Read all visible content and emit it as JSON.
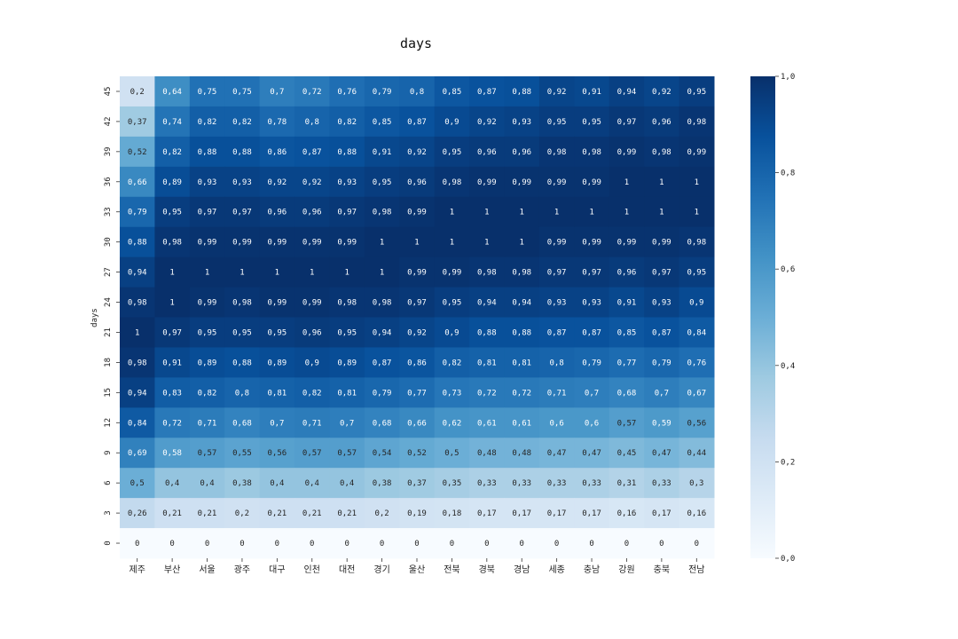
{
  "chart_data": {
    "type": "heatmap",
    "title": "days",
    "xlabel": "",
    "ylabel": "days",
    "x_categories": [
      "제주",
      "부산",
      "서울",
      "광주",
      "대구",
      "인천",
      "대전",
      "경기",
      "울산",
      "전북",
      "경북",
      "경남",
      "세종",
      "충남",
      "강원",
      "충북",
      "전남"
    ],
    "y_categories": [
      "45",
      "42",
      "39",
      "36",
      "33",
      "30",
      "27",
      "24",
      "21",
      "18",
      "15",
      "12",
      "9",
      "6",
      "3",
      "0"
    ],
    "values": [
      [
        0.2,
        0.64,
        0.75,
        0.75,
        0.7,
        0.72,
        0.76,
        0.79,
        0.8,
        0.85,
        0.87,
        0.88,
        0.92,
        0.91,
        0.94,
        0.92,
        0.95
      ],
      [
        0.37,
        0.74,
        0.82,
        0.82,
        0.78,
        0.8,
        0.82,
        0.85,
        0.87,
        0.9,
        0.92,
        0.93,
        0.95,
        0.95,
        0.97,
        0.96,
        0.98
      ],
      [
        0.52,
        0.82,
        0.88,
        0.88,
        0.86,
        0.87,
        0.88,
        0.91,
        0.92,
        0.95,
        0.96,
        0.96,
        0.98,
        0.98,
        0.99,
        0.98,
        0.99
      ],
      [
        0.66,
        0.89,
        0.93,
        0.93,
        0.92,
        0.92,
        0.93,
        0.95,
        0.96,
        0.98,
        0.99,
        0.99,
        0.99,
        0.99,
        1,
        1,
        1
      ],
      [
        0.79,
        0.95,
        0.97,
        0.97,
        0.96,
        0.96,
        0.97,
        0.98,
        0.99,
        1,
        1,
        1,
        1,
        1,
        1,
        1,
        1
      ],
      [
        0.88,
        0.98,
        0.99,
        0.99,
        0.99,
        0.99,
        0.99,
        1,
        1,
        1,
        1,
        1,
        0.99,
        0.99,
        0.99,
        0.99,
        0.98
      ],
      [
        0.94,
        1,
        1,
        1,
        1,
        1,
        1,
        1,
        0.99,
        0.99,
        0.98,
        0.98,
        0.97,
        0.97,
        0.96,
        0.97,
        0.95
      ],
      [
        0.98,
        1,
        0.99,
        0.98,
        0.99,
        0.99,
        0.98,
        0.98,
        0.97,
        0.95,
        0.94,
        0.94,
        0.93,
        0.93,
        0.91,
        0.93,
        0.9
      ],
      [
        1,
        0.97,
        0.95,
        0.95,
        0.95,
        0.96,
        0.95,
        0.94,
        0.92,
        0.9,
        0.88,
        0.88,
        0.87,
        0.87,
        0.85,
        0.87,
        0.84
      ],
      [
        0.98,
        0.91,
        0.89,
        0.88,
        0.89,
        0.9,
        0.89,
        0.87,
        0.86,
        0.82,
        0.81,
        0.81,
        0.8,
        0.79,
        0.77,
        0.79,
        0.76
      ],
      [
        0.94,
        0.83,
        0.82,
        0.8,
        0.81,
        0.82,
        0.81,
        0.79,
        0.77,
        0.73,
        0.72,
        0.72,
        0.71,
        0.7,
        0.68,
        0.7,
        0.67
      ],
      [
        0.84,
        0.72,
        0.71,
        0.68,
        0.7,
        0.71,
        0.7,
        0.68,
        0.66,
        0.62,
        0.61,
        0.61,
        0.6,
        0.6,
        0.57,
        0.59,
        0.56
      ],
      [
        0.69,
        0.58,
        0.57,
        0.55,
        0.56,
        0.57,
        0.57,
        0.54,
        0.52,
        0.5,
        0.48,
        0.48,
        0.47,
        0.47,
        0.45,
        0.47,
        0.44
      ],
      [
        0.5,
        0.4,
        0.4,
        0.38,
        0.4,
        0.4,
        0.4,
        0.38,
        0.37,
        0.35,
        0.33,
        0.33,
        0.33,
        0.33,
        0.31,
        0.33,
        0.3
      ],
      [
        0.26,
        0.21,
        0.21,
        0.2,
        0.21,
        0.21,
        0.21,
        0.2,
        0.19,
        0.18,
        0.17,
        0.17,
        0.17,
        0.17,
        0.16,
        0.17,
        0.16
      ],
      [
        0,
        0,
        0,
        0,
        0,
        0,
        0,
        0,
        0,
        0,
        0,
        0,
        0,
        0,
        0,
        0,
        0
      ]
    ],
    "colorscale": "Blues",
    "vmin": 0,
    "vmax": 1,
    "colorbar_ticks": [
      "0,0",
      "0,2",
      "0,4",
      "0,6",
      "0,8",
      "1,0"
    ],
    "colorbar_tick_values": [
      0,
      0.2,
      0.4,
      0.6,
      0.8,
      1.0
    ],
    "decimal_separator": ",",
    "legend": "colorbar right"
  }
}
